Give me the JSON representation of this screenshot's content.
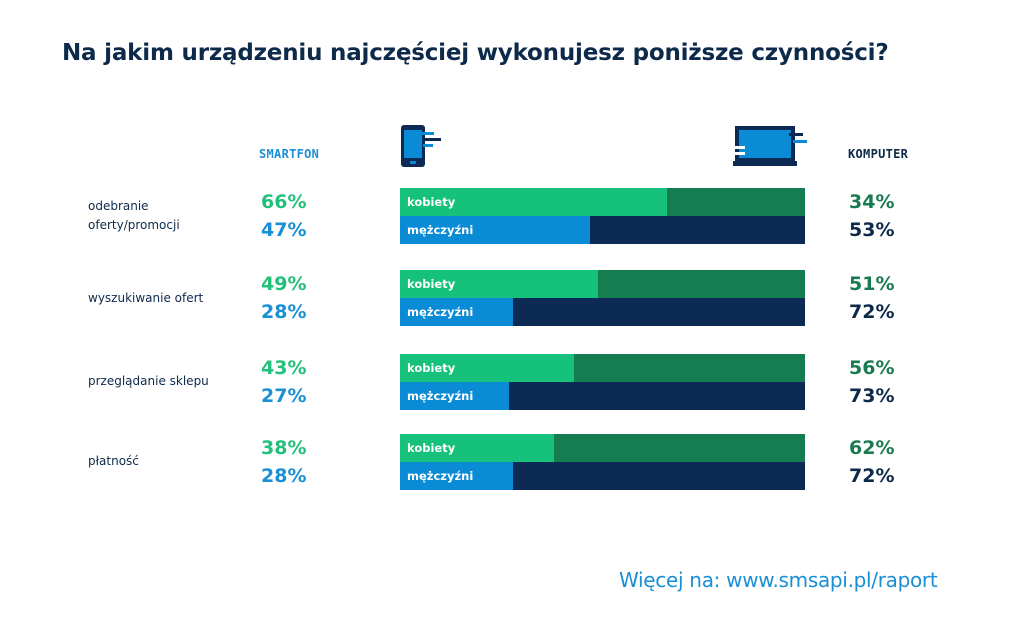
{
  "title": "Na jakim urządzeniu najczęściej wykonujesz poniższe czynności?",
  "headers": {
    "left": "SMARTFON",
    "right": "KOMPUTER",
    "left_icon": "smartphone-icon",
    "right_icon": "laptop-icon"
  },
  "colors": {
    "women_smartphone": "#16c17b",
    "women_computer": "#167d53",
    "men_smartphone": "#0a8bd6",
    "men_computer": "#0d2a55"
  },
  "chart_data": {
    "type": "bar",
    "orientation": "horizontal",
    "stacked": true,
    "categories": [
      "odebranie oferty/promocji",
      "wyszukiwanie ofert",
      "przeglądanie sklepu",
      "płatność"
    ],
    "series": [
      {
        "name": "kobiety",
        "smartfon": [
          66,
          49,
          43,
          38
        ],
        "komputer": [
          34,
          51,
          56,
          62
        ]
      },
      {
        "name": "mężczyźni",
        "smartfon": [
          47,
          28,
          27,
          28
        ],
        "komputer": [
          53,
          72,
          73,
          72
        ]
      }
    ],
    "smartfon_labels": [
      [
        "66%",
        "47%"
      ],
      [
        "49%",
        "28%"
      ],
      [
        "43%",
        "27%"
      ],
      [
        "38%",
        "28%"
      ]
    ],
    "komputer_labels": [
      [
        "34%",
        "53%"
      ],
      [
        "51%",
        "72%"
      ],
      [
        "56%",
        "73%"
      ],
      [
        "62%",
        "72%"
      ]
    ],
    "xlim": [
      0,
      100
    ]
  },
  "footer": "Więcej na: www.smsapi.pl/raport"
}
